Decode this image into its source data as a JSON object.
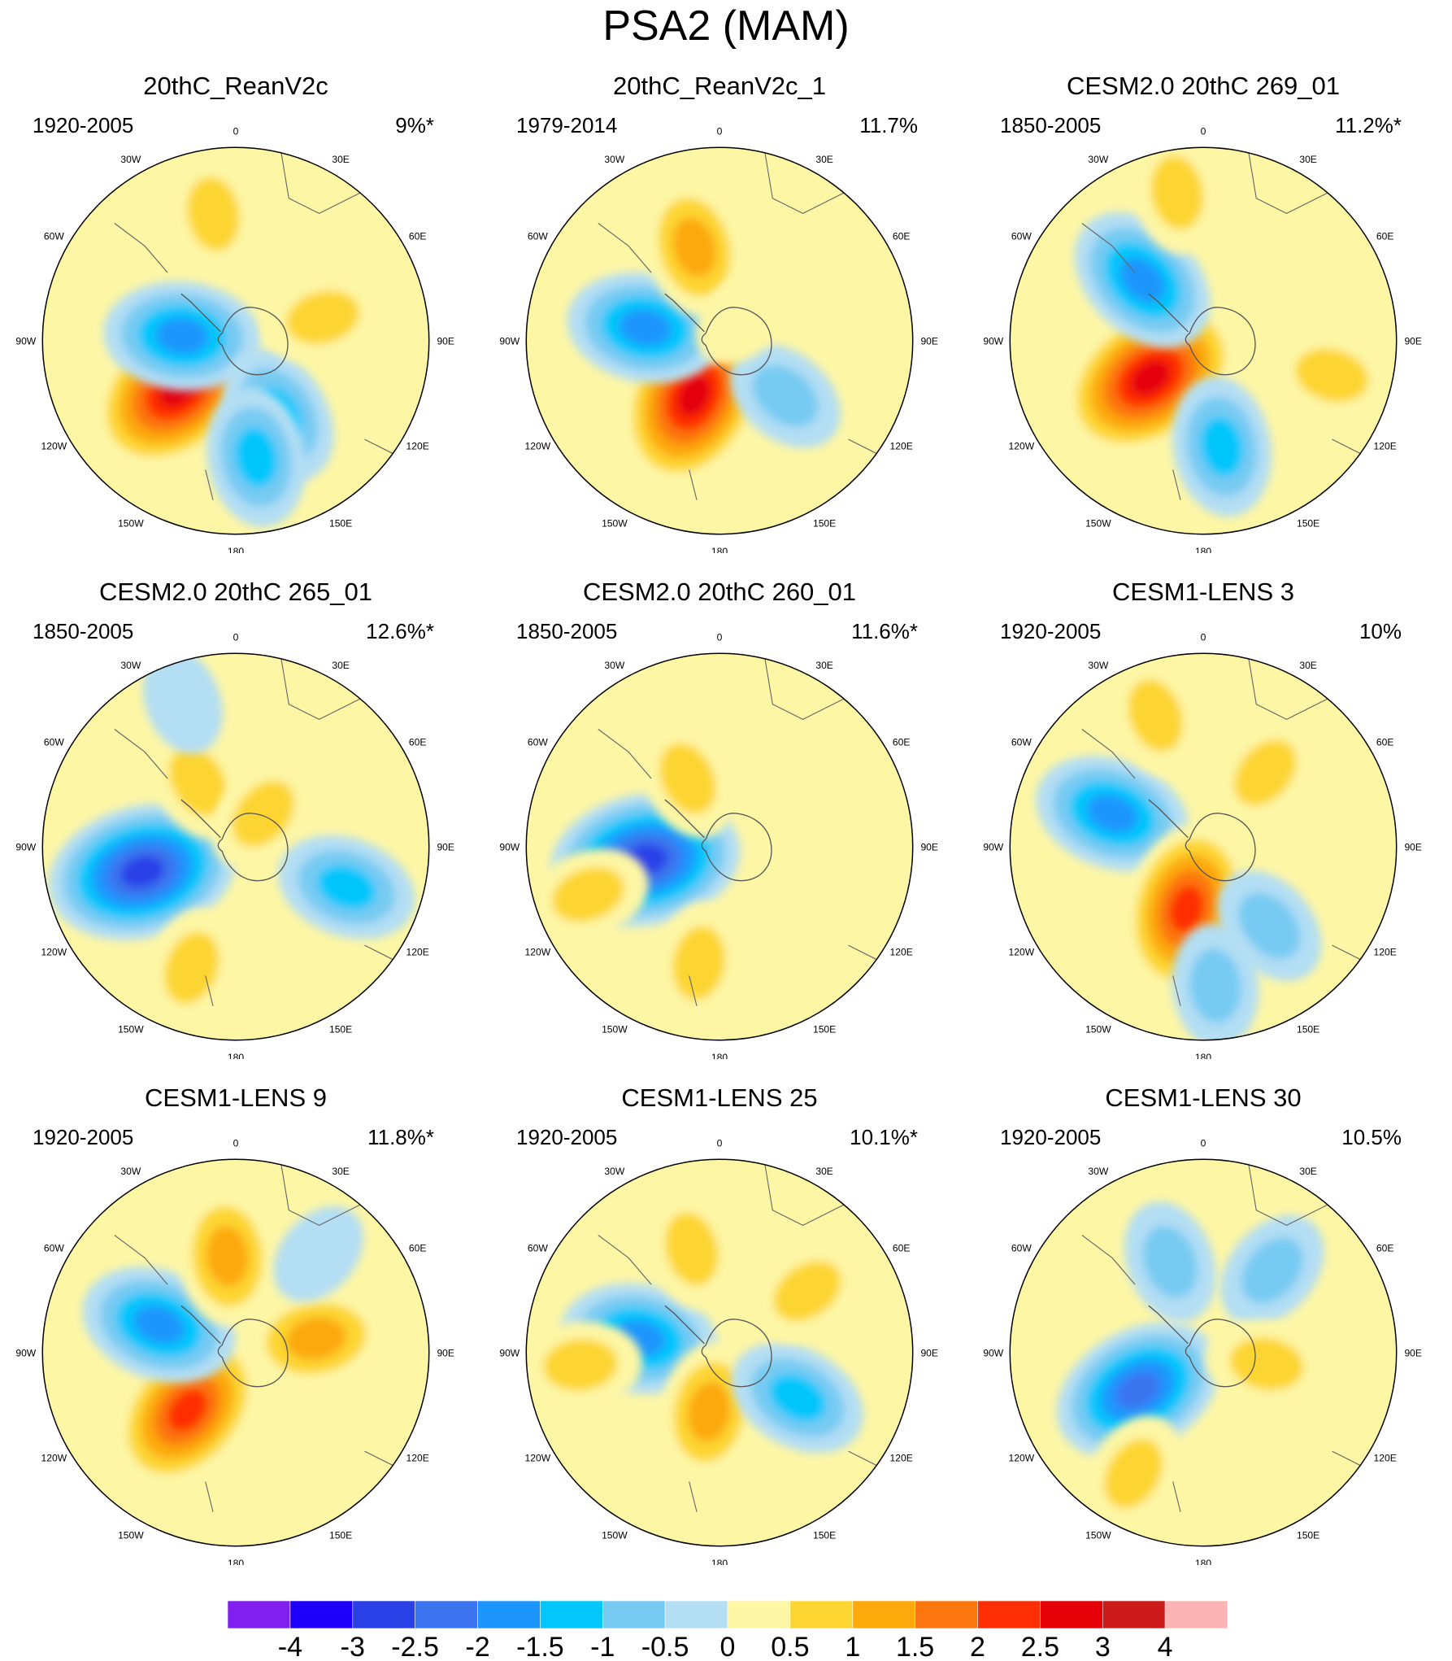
{
  "title": "PSA2 (MAM)",
  "lon_labels": [
    "0",
    "30E",
    "60E",
    "90E",
    "120E",
    "150E",
    "180",
    "150W",
    "120W",
    "90W",
    "60W",
    "30W"
  ],
  "colorbar": {
    "colors": [
      "#8120ee",
      "#1e00fa",
      "#2b41e8",
      "#3b74ee",
      "#1c96fd",
      "#03c6fc",
      "#77cbf2",
      "#b3def4",
      "#fdf6a5",
      "#fdd530",
      "#fca90c",
      "#fc760f",
      "#fe2e05",
      "#e50007",
      "#cd1b1b",
      "#fcb4b4"
    ],
    "ticks": [
      "-4",
      "-3",
      "-2.5",
      "-2",
      "-1.5",
      "-1",
      "-0.5",
      "0",
      "0.5",
      "1",
      "1.5",
      "2",
      "2.5",
      "3",
      "4"
    ]
  },
  "chart_data": [
    {
      "type": "contour-map",
      "title": "20thC_ReanV2c",
      "period": "1920-2005",
      "variance": "9%*",
      "blobs": [
        {
          "lon": -130,
          "colat": 35,
          "value": 3.0
        },
        {
          "lon": -85,
          "colat": 25,
          "value": -2.0
        },
        {
          "lon": 150,
          "colat": 40,
          "value": -1.5
        },
        {
          "lon": 170,
          "colat": 55,
          "value": -1.5
        },
        {
          "lon": -10,
          "colat": 60,
          "value": 1.0
        },
        {
          "lon": 75,
          "colat": 42,
          "value": 1.0
        }
      ]
    },
    {
      "type": "contour-map",
      "title": "20thC_ReanV2c_1",
      "period": "1979-2014",
      "variance": "11.7%",
      "blobs": [
        {
          "lon": -155,
          "colat": 28,
          "value": 3.0
        },
        {
          "lon": -80,
          "colat": 35,
          "value": -2.0
        },
        {
          "lon": -15,
          "colat": 45,
          "value": 1.5
        },
        {
          "lon": 130,
          "colat": 40,
          "value": -1.0
        },
        {
          "lon": 45,
          "colat": 15,
          "value": 0.5
        }
      ]
    },
    {
      "type": "contour-map",
      "title": "CESM2.0 20thC 269_01",
      "period": "1850-2005",
      "variance": "11.2%*",
      "blobs": [
        {
          "lon": -125,
          "colat": 30,
          "value": 3.0
        },
        {
          "lon": -45,
          "colat": 40,
          "value": -2.0
        },
        {
          "lon": 170,
          "colat": 50,
          "value": -1.5
        },
        {
          "lon": 105,
          "colat": 62,
          "value": 1.0
        },
        {
          "lon": -10,
          "colat": 70,
          "value": 1.0
        }
      ]
    },
    {
      "type": "contour-map",
      "title": "CESM2.0 20thC 265_01",
      "period": "1850-2005",
      "variance": "12.6%*",
      "blobs": [
        {
          "lon": -105,
          "colat": 45,
          "value": -3.0
        },
        {
          "lon": -30,
          "colat": 35,
          "value": 1.0
        },
        {
          "lon": 40,
          "colat": 20,
          "value": 1.0
        },
        {
          "lon": 110,
          "colat": 55,
          "value": -1.5
        },
        {
          "lon": -160,
          "colat": 60,
          "value": 1.0
        },
        {
          "lon": -20,
          "colat": 72,
          "value": -0.5
        }
      ]
    },
    {
      "type": "contour-map",
      "title": "CESM2.0 20thC 260_01",
      "period": "1850-2005",
      "variance": "11.6%*",
      "blobs": [
        {
          "lon": -100,
          "colat": 35,
          "value": -3.0
        },
        {
          "lon": -25,
          "colat": 35,
          "value": 1.0
        },
        {
          "lon": -170,
          "colat": 55,
          "value": 1.0
        },
        {
          "lon": -110,
          "colat": 65,
          "value": 1.0
        }
      ]
    },
    {
      "type": "contour-map",
      "title": "CESM1-LENS 3",
      "period": "1920-2005",
      "variance": "10%",
      "blobs": [
        {
          "lon": -70,
          "colat": 45,
          "value": -2.0
        },
        {
          "lon": -165,
          "colat": 30,
          "value": 2.5
        },
        {
          "lon": 40,
          "colat": 45,
          "value": 1.0
        },
        {
          "lon": -20,
          "colat": 65,
          "value": 1.0
        },
        {
          "lon": 140,
          "colat": 48,
          "value": -1.0
        },
        {
          "lon": 175,
          "colat": 65,
          "value": -1.0
        }
      ]
    },
    {
      "type": "contour-map",
      "title": "CESM1-LENS 9",
      "period": "1920-2005",
      "variance": "11.8%*",
      "blobs": [
        {
          "lon": -140,
          "colat": 35,
          "value": 2.5
        },
        {
          "lon": -70,
          "colat": 38,
          "value": -2.0
        },
        {
          "lon": -5,
          "colat": 45,
          "value": 1.5
        },
        {
          "lon": 80,
          "colat": 38,
          "value": 1.5
        },
        {
          "lon": 40,
          "colat": 60,
          "value": -0.5
        }
      ]
    },
    {
      "type": "contour-map",
      "title": "CESM1-LENS 25",
      "period": "1920-2005",
      "variance": "10.1%*",
      "blobs": [
        {
          "lon": -80,
          "colat": 38,
          "value": -2.0
        },
        {
          "lon": -170,
          "colat": 28,
          "value": 1.5
        },
        {
          "lon": 120,
          "colat": 42,
          "value": -1.5
        },
        {
          "lon": -15,
          "colat": 50,
          "value": 1.0
        },
        {
          "lon": 55,
          "colat": 50,
          "value": 1.0
        },
        {
          "lon": -95,
          "colat": 65,
          "value": 1.0
        }
      ]
    },
    {
      "type": "contour-map",
      "title": "CESM1-LENS 30",
      "period": "1920-2005",
      "variance": "10.5%",
      "blobs": [
        {
          "lon": -120,
          "colat": 35,
          "value": -2.5
        },
        {
          "lon": -20,
          "colat": 45,
          "value": -1.0
        },
        {
          "lon": 40,
          "colat": 50,
          "value": -1.0
        },
        {
          "lon": 100,
          "colat": 30,
          "value": 1.0
        },
        {
          "lon": -150,
          "colat": 65,
          "value": 1.0
        }
      ]
    }
  ]
}
